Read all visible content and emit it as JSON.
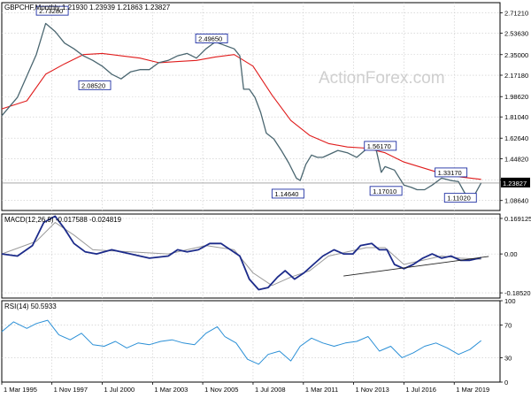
{
  "header": {
    "price_title": "GBPCHF,Monthly  1.21930 1.23939 1.21863 1.23827",
    "macd_title": "MACD(12,26,9) -0.017588 -0.024819",
    "rsi_title": "RSI(14) 50.5933",
    "watermark": "ActionForex.com"
  },
  "colors": {
    "price": "#4a6670",
    "ma": "#e01c1c",
    "macd": "#1c2b8a",
    "signal": "#9a9a9a",
    "rsi": "#2a8fd6",
    "label_border": "#1e2fa3",
    "current_box": "#000000"
  },
  "chart_data": [
    {
      "type": "line",
      "name": "price",
      "xlabels": [
        "1 Mar 1995",
        "1 Nov 1997",
        "1 Jul 2000",
        "1 Mar 2003",
        "1 Nov 2005",
        "1 Jul 2008",
        "1 Mar 2011",
        "1 Nov 2013",
        "1 Jul 2016",
        "1 Mar 2019"
      ],
      "yticks": [
        "2.71210",
        "2.53630",
        "2.35000",
        "2.17180",
        "1.98620",
        "1.81040",
        "1.62640",
        "1.44820",
        "1.26550",
        "1.08640"
      ],
      "ylim": [
        1.0,
        2.8
      ],
      "current_value": "1.23827",
      "series_x": [
        1995.17,
        1996.0,
        1997.0,
        1997.5,
        1998.0,
        1998.5,
        1999.0,
        1999.5,
        2000.0,
        2000.5,
        2001.0,
        2001.5,
        2002.0,
        2002.5,
        2003.0,
        2003.5,
        2004.0,
        2004.5,
        2005.0,
        2005.5,
        2006.0,
        2006.5,
        2007.0,
        2007.5,
        2007.8,
        2008.0,
        2008.3,
        2008.6,
        2008.9,
        2009.2,
        2009.6,
        2010.0,
        2010.4,
        2010.8,
        2011.0,
        2011.3,
        2011.6,
        2011.9,
        2012.2,
        2012.6,
        2013.0,
        2013.5,
        2014.0,
        2014.5,
        2015.0,
        2015.3,
        2015.5,
        2016.0,
        2016.5,
        2016.9,
        2017.2,
        2017.6,
        2018.0,
        2018.5,
        2019.0,
        2019.4,
        2019.8,
        2020.2,
        2020.6
      ],
      "series_y": [
        1.82,
        1.98,
        2.35,
        2.62,
        2.55,
        2.45,
        2.4,
        2.34,
        2.3,
        2.25,
        2.18,
        2.14,
        2.2,
        2.22,
        2.22,
        2.28,
        2.3,
        2.34,
        2.36,
        2.32,
        2.4,
        2.46,
        2.43,
        2.4,
        2.34,
        2.05,
        2.05,
        1.98,
        1.85,
        1.67,
        1.62,
        1.52,
        1.41,
        1.28,
        1.26,
        1.4,
        1.48,
        1.46,
        1.46,
        1.49,
        1.52,
        1.5,
        1.46,
        1.53,
        1.55,
        1.33,
        1.38,
        1.35,
        1.22,
        1.2,
        1.18,
        1.18,
        1.22,
        1.28,
        1.26,
        1.25,
        1.13,
        1.12,
        1.24
      ],
      "ma_x": [
        1995.17,
        1996.5,
        1997.5,
        1998.5,
        1999.5,
        2000.5,
        2001.5,
        2002.5,
        2003.5,
        2004.5,
        2005.5,
        2006.5,
        2007.5,
        2008.5,
        2009.5,
        2010.5,
        2011.5,
        2012.5,
        2013.5,
        2014.5,
        2015.5,
        2016.5,
        2017.5,
        2018.5,
        2019.5,
        2020.6
      ],
      "ma_y": [
        1.88,
        1.95,
        2.18,
        2.27,
        2.35,
        2.36,
        2.34,
        2.32,
        2.28,
        2.29,
        2.3,
        2.33,
        2.35,
        2.25,
        2.0,
        1.78,
        1.65,
        1.58,
        1.55,
        1.54,
        1.5,
        1.42,
        1.37,
        1.32,
        1.29,
        1.27
      ],
      "annotations": [
        {
          "label": "2.73280",
          "x": 1997.85,
          "y": 2.73
        },
        {
          "label": "2.49650",
          "x": 2006.3,
          "y": 2.49
        },
        {
          "label": "2.08520",
          "x": 2000.1,
          "y": 2.085
        },
        {
          "label": "1.14640",
          "x": 2010.35,
          "y": 1.146
        },
        {
          "label": "1.56170",
          "x": 2015.25,
          "y": 1.56
        },
        {
          "label": "1.17010",
          "x": 2015.55,
          "y": 1.17
        },
        {
          "label": "1.33170",
          "x": 2019.0,
          "y": 1.33
        },
        {
          "label": "1.11020",
          "x": 2019.5,
          "y": 1.11
        }
      ]
    },
    {
      "type": "line",
      "name": "macd",
      "yticks": [
        "0.169125",
        "0.00",
        "-0.185209"
      ],
      "ylim": [
        -0.21,
        0.19
      ],
      "series_x": [
        1995.17,
        1996.0,
        1996.8,
        1997.4,
        1998.0,
        1998.5,
        1999.0,
        1999.6,
        2000.2,
        2001.0,
        2002.0,
        2003.0,
        2004.0,
        2004.5,
        2005.0,
        2005.6,
        2006.2,
        2006.8,
        2007.3,
        2007.8,
        2008.3,
        2008.8,
        2009.3,
        2009.8,
        2010.2,
        2010.7,
        2011.2,
        2011.7,
        2012.2,
        2012.8,
        2013.3,
        2013.8,
        2014.2,
        2014.8,
        2015.2,
        2015.6,
        2016.0,
        2016.5,
        2017.0,
        2017.5,
        2018.0,
        2018.5,
        2019.0,
        2019.5,
        2020.0,
        2020.6
      ],
      "series_y": [
        0.0,
        -0.01,
        0.04,
        0.15,
        0.18,
        0.12,
        0.05,
        0.01,
        0.0,
        0.02,
        0.0,
        -0.02,
        -0.01,
        0.02,
        0.01,
        0.02,
        0.05,
        0.05,
        0.02,
        -0.01,
        -0.12,
        -0.17,
        -0.16,
        -0.11,
        -0.08,
        -0.12,
        -0.09,
        -0.05,
        -0.01,
        0.02,
        0.0,
        0.0,
        0.04,
        0.05,
        0.02,
        0.02,
        -0.05,
        -0.07,
        -0.05,
        -0.02,
        0.0,
        -0.02,
        -0.01,
        -0.03,
        -0.03,
        -0.018
      ],
      "signal_x": [
        1995.17,
        1997.0,
        1998.0,
        1999.0,
        2000.0,
        2002.0,
        2004.0,
        2006.0,
        2007.5,
        2008.5,
        2009.5,
        2010.5,
        2011.5,
        2012.5,
        2013.5,
        2014.5,
        2015.5,
        2016.5,
        2017.5,
        2018.5,
        2019.5,
        2020.6
      ],
      "signal_y": [
        0.0,
        0.06,
        0.15,
        0.09,
        0.02,
        0.01,
        0.0,
        0.04,
        0.02,
        -0.09,
        -0.15,
        -0.11,
        -0.08,
        -0.01,
        0.01,
        0.03,
        0.03,
        -0.05,
        -0.03,
        -0.01,
        -0.02,
        -0.025
      ],
      "trendline": [
        [
          2013.3,
          -0.105
        ],
        [
          2021.0,
          -0.012
        ]
      ]
    },
    {
      "type": "line",
      "name": "rsi",
      "yticks": [
        "100",
        "70",
        "30",
        "0"
      ],
      "ylim": [
        0,
        100
      ],
      "series_x": [
        1995.17,
        1995.8,
        1996.5,
        1997.0,
        1997.6,
        1998.2,
        1998.8,
        1999.4,
        2000.0,
        2000.6,
        2001.2,
        2001.8,
        2002.4,
        2003.0,
        2003.6,
        2004.2,
        2004.8,
        2005.4,
        2006.0,
        2006.6,
        2007.0,
        2007.6,
        2008.2,
        2008.8,
        2009.3,
        2009.9,
        2010.5,
        2011.0,
        2011.6,
        2012.2,
        2012.8,
        2013.4,
        2014.0,
        2014.6,
        2015.2,
        2015.8,
        2016.4,
        2017.0,
        2017.6,
        2018.2,
        2018.8,
        2019.4,
        2020.0,
        2020.6
      ],
      "series_y": [
        62,
        74,
        66,
        72,
        76,
        58,
        52,
        60,
        46,
        44,
        50,
        42,
        48,
        46,
        50,
        52,
        48,
        46,
        60,
        68,
        56,
        48,
        28,
        22,
        34,
        38,
        26,
        44,
        54,
        48,
        44,
        48,
        50,
        56,
        38,
        44,
        30,
        36,
        44,
        48,
        42,
        34,
        40,
        51
      ]
    }
  ]
}
